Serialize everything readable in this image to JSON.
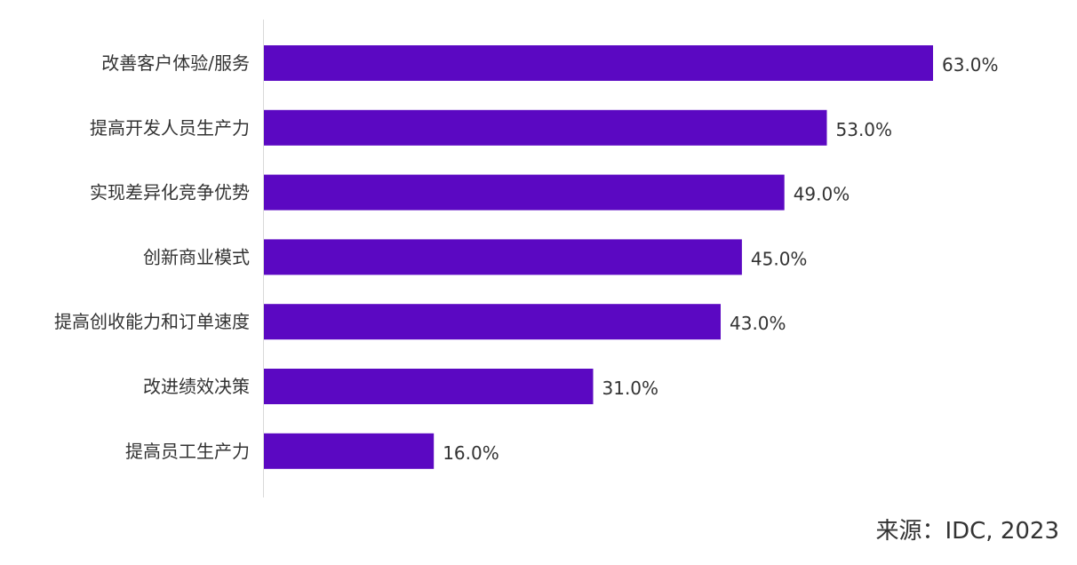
{
  "chart_data": {
    "type": "bar",
    "orientation": "horizontal",
    "categories": [
      "改善客户体验/服务",
      "提高开发人员生产力",
      "实现差异化竞争优势",
      "创新商业模式",
      "提高创收能力和订单速度",
      "改进绩效决策",
      "提高员工生产力"
    ],
    "values": [
      63.0,
      53.0,
      49.0,
      45.0,
      43.0,
      31.0,
      16.0
    ],
    "value_labels": [
      "63.0%",
      "53.0%",
      "49.0%",
      "45.0%",
      "43.0%",
      "31.0%",
      "16.0%"
    ],
    "unit": "%",
    "xlim": [
      0,
      70
    ],
    "grid": false,
    "legend": "none",
    "bar_color": "#5b08c2",
    "axis_line_color": "#d9d9d9"
  },
  "source": "来源：IDC, 2023"
}
